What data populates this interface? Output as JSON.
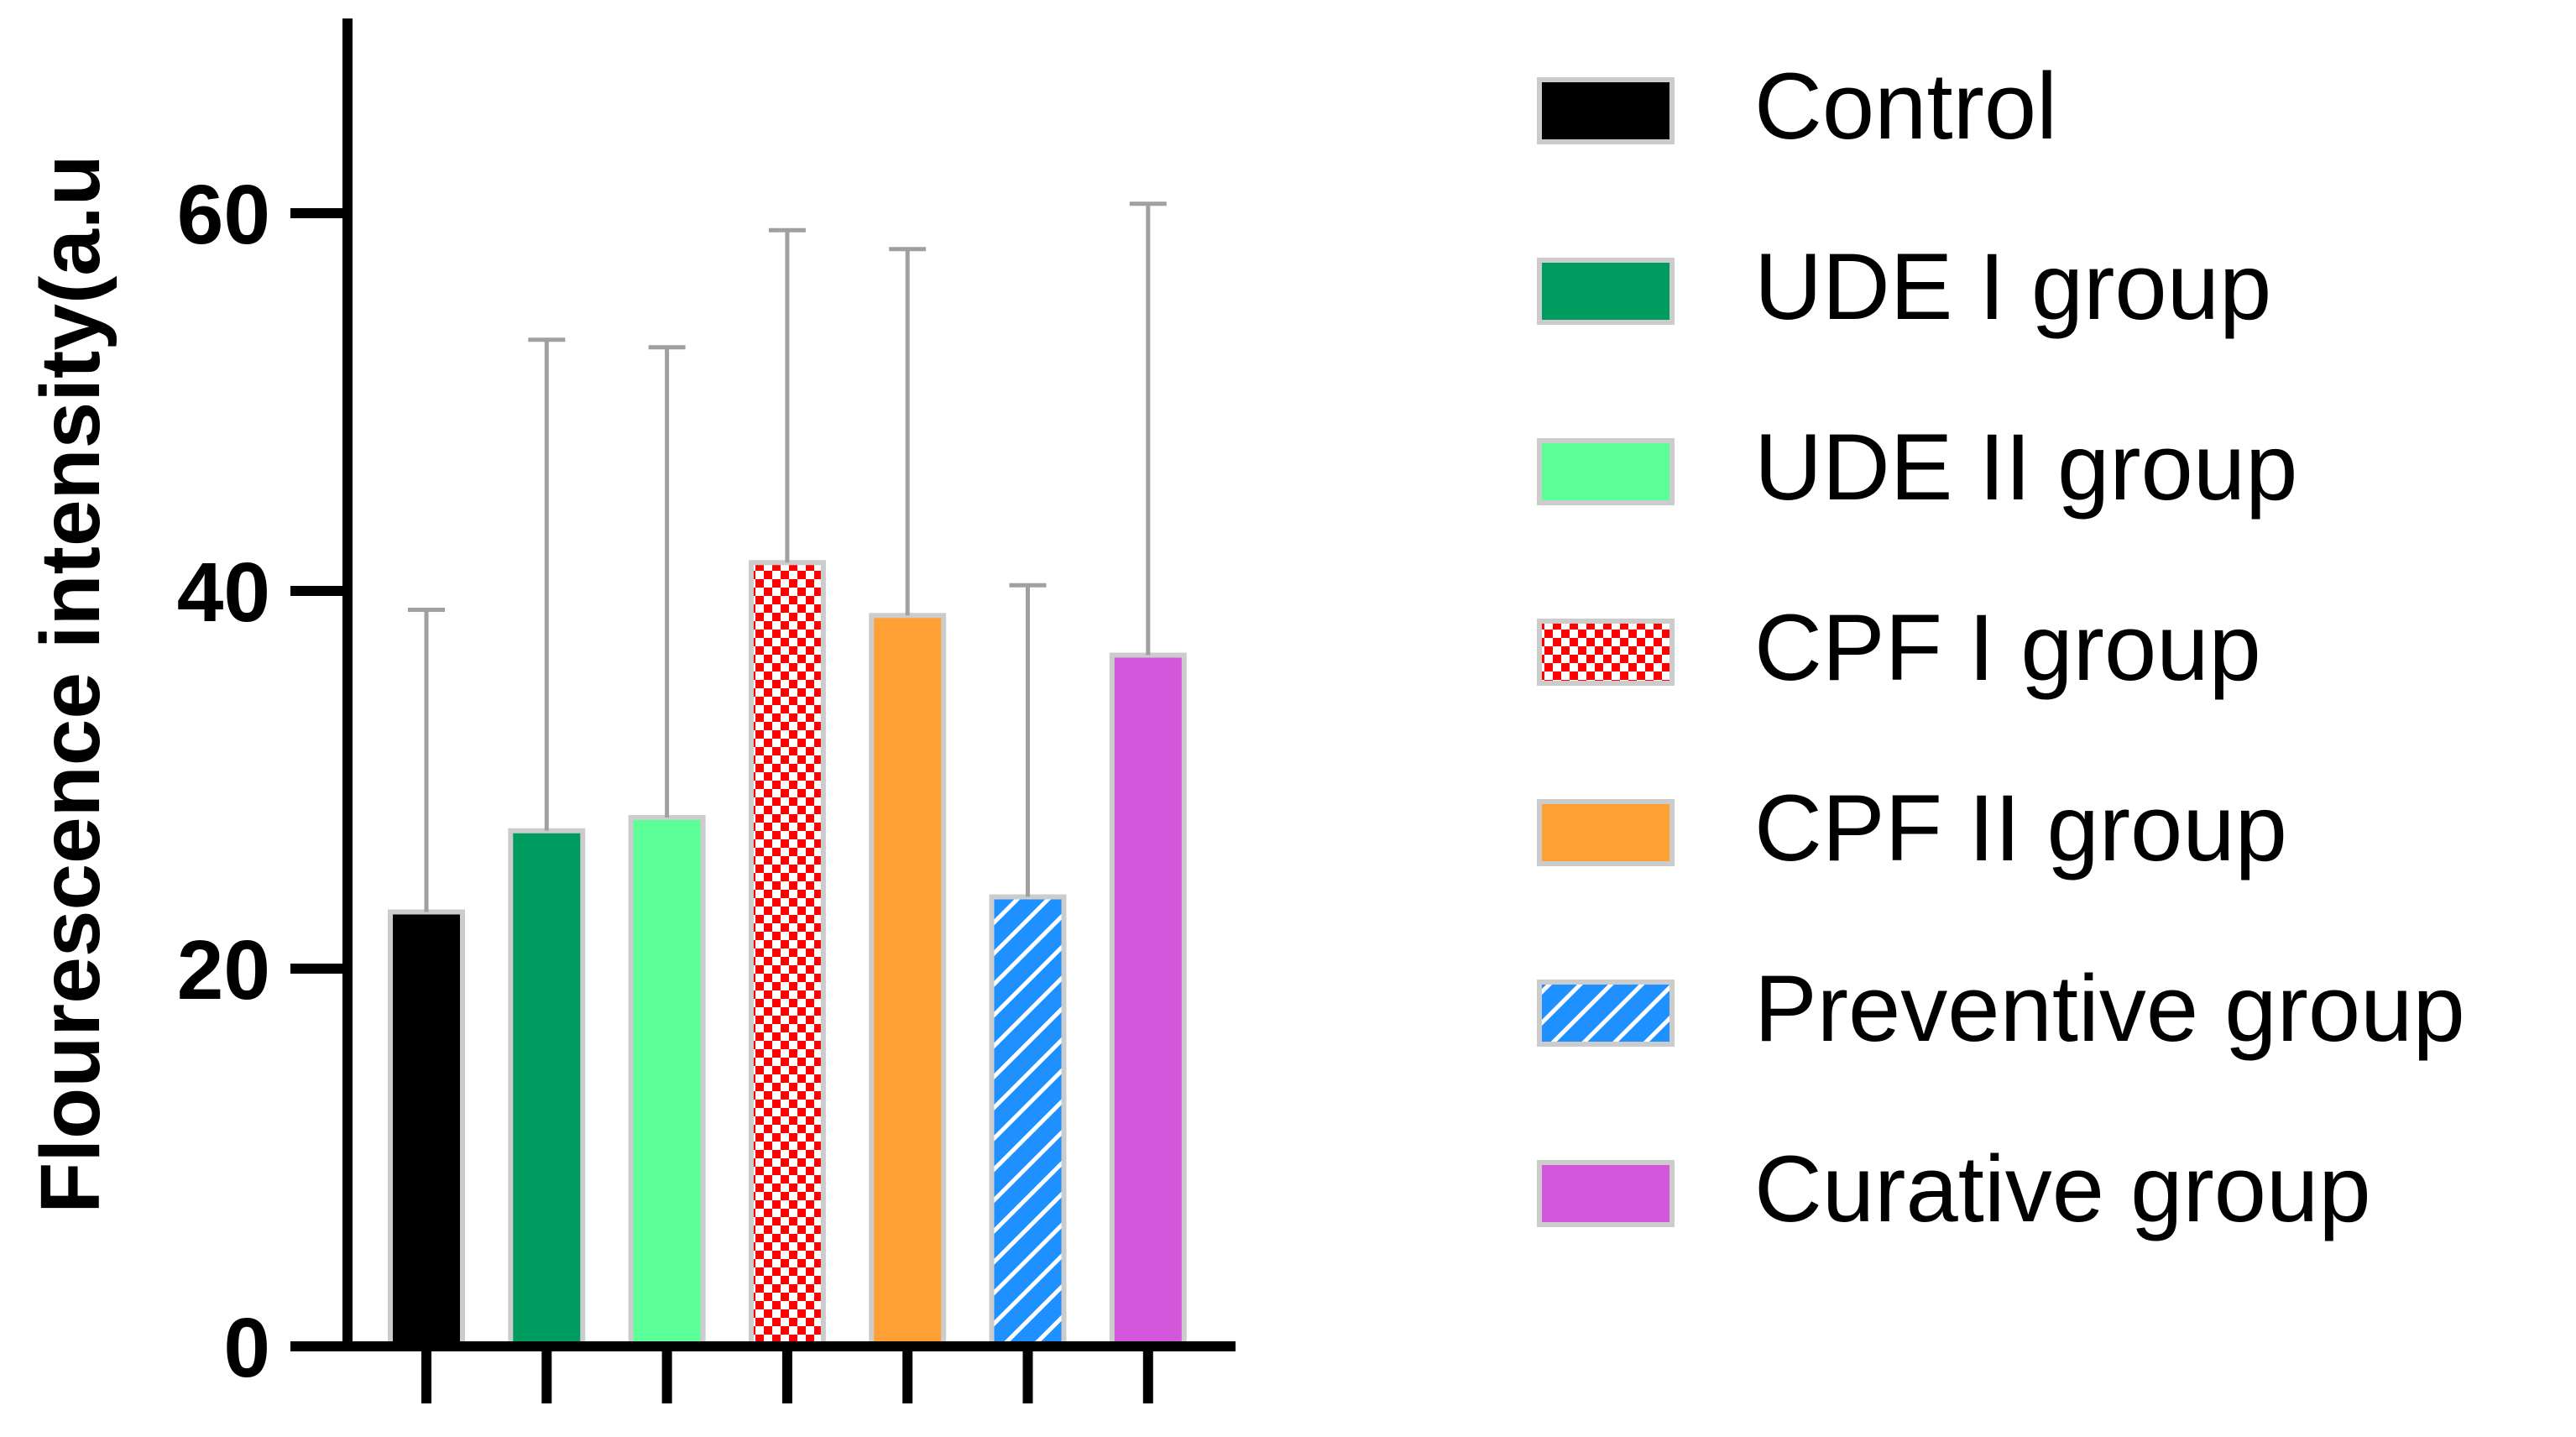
{
  "chart_data": {
    "type": "bar",
    "title": "",
    "xlabel": "",
    "ylabel": "Flourescence intensity(a.u",
    "ylim": [
      0,
      70
    ],
    "yticks": [
      0,
      20,
      40,
      60
    ],
    "grid": false,
    "legend_position": "right",
    "categories": [
      "Control",
      "UDE I group",
      "UDE II group",
      "CPF I group",
      "CPF II group",
      "Preventive group",
      "Curative group"
    ],
    "values": [
      23,
      27.3,
      28,
      41.5,
      38.7,
      23.8,
      36.6
    ],
    "error_upper": [
      39,
      53.3,
      52.9,
      59.1,
      58.1,
      40.3,
      60.5
    ],
    "fills": [
      {
        "color": "#000000",
        "pattern": "solid"
      },
      {
        "color": "#009b5f",
        "pattern": "solid"
      },
      {
        "color": "#5bff98",
        "pattern": "solid"
      },
      {
        "color": "#ff0000",
        "pattern": "checker"
      },
      {
        "color": "#ffa035",
        "pattern": "solid"
      },
      {
        "color": "#1e90ff",
        "pattern": "diagonal"
      },
      {
        "color": "#d357db",
        "pattern": "solid"
      }
    ],
    "bar_border_color": "#cccccc",
    "error_bar_color": "#a0a0a0"
  }
}
